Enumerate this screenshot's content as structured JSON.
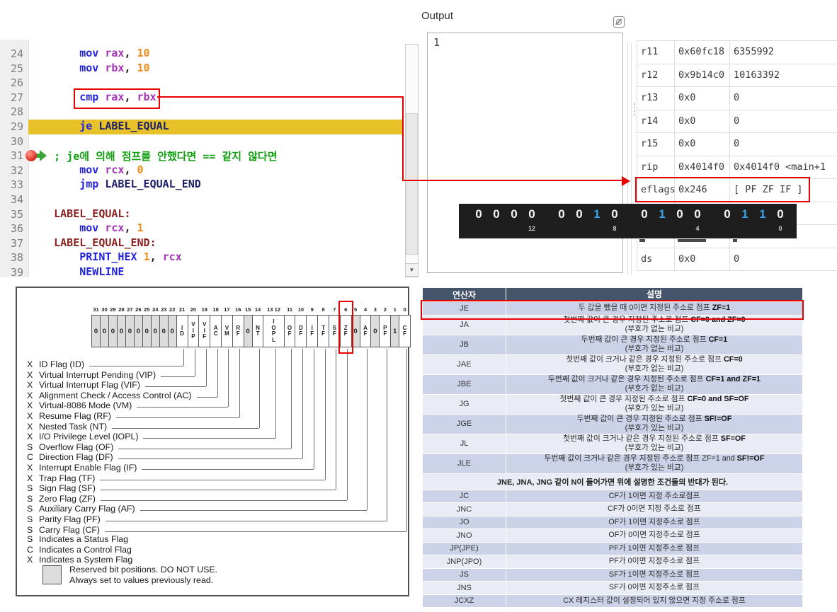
{
  "editor": {
    "lines": [
      {
        "num": "24",
        "ind": 8,
        "t": [
          [
            "kw",
            "mov"
          ],
          [
            "pl",
            " "
          ],
          [
            "reg",
            "rax"
          ],
          [
            "pl",
            ", "
          ],
          [
            "num",
            "10"
          ]
        ]
      },
      {
        "num": "25",
        "ind": 8,
        "t": [
          [
            "kw",
            "mov"
          ],
          [
            "pl",
            " "
          ],
          [
            "reg",
            "rbx"
          ],
          [
            "pl",
            ", "
          ],
          [
            "num",
            "10"
          ]
        ]
      },
      {
        "num": "26",
        "ind": 0,
        "t": []
      },
      {
        "num": "27",
        "ind": 8,
        "t": [
          [
            "kw",
            "cmp"
          ],
          [
            "pl",
            " "
          ],
          [
            "reg",
            "rax"
          ],
          [
            "pl",
            ", "
          ],
          [
            "reg",
            "rbx"
          ]
        ],
        "box": true
      },
      {
        "num": "28",
        "ind": 0,
        "t": []
      },
      {
        "num": "29",
        "ind": 8,
        "t": [
          [
            "kw",
            "je"
          ],
          [
            "pl",
            " "
          ],
          [
            "ref",
            "LABEL_EQUAL"
          ]
        ],
        "hl": true,
        "bp": true
      },
      {
        "num": "30",
        "ind": 0,
        "t": []
      },
      {
        "num": "31",
        "ind": 4,
        "t": [
          [
            "cmt",
            "; je에 의해 점프를 안했다면 == 같지 않다면"
          ]
        ]
      },
      {
        "num": "32",
        "ind": 8,
        "t": [
          [
            "kw",
            "mov"
          ],
          [
            "pl",
            " "
          ],
          [
            "reg",
            "rcx"
          ],
          [
            "pl",
            ", "
          ],
          [
            "num",
            "0"
          ]
        ]
      },
      {
        "num": "33",
        "ind": 8,
        "t": [
          [
            "kw",
            "jmp"
          ],
          [
            "pl",
            " "
          ],
          [
            "ref",
            "LABEL_EQUAL_END"
          ]
        ]
      },
      {
        "num": "34",
        "ind": 0,
        "t": []
      },
      {
        "num": "35",
        "ind": 4,
        "t": [
          [
            "lbl",
            "LABEL_EQUAL:"
          ]
        ]
      },
      {
        "num": "36",
        "ind": 8,
        "t": [
          [
            "kw",
            "mov"
          ],
          [
            "pl",
            " "
          ],
          [
            "reg",
            "rcx"
          ],
          [
            "pl",
            ", "
          ],
          [
            "num",
            "1"
          ]
        ]
      },
      {
        "num": "37",
        "ind": 4,
        "t": [
          [
            "lbl",
            "LABEL_EQUAL_END:"
          ]
        ]
      },
      {
        "num": "38",
        "ind": 8,
        "t": [
          [
            "kw",
            "PRINT_HEX"
          ],
          [
            "pl",
            " "
          ],
          [
            "num",
            "1"
          ],
          [
            "pl",
            ", "
          ],
          [
            "reg",
            "rcx"
          ]
        ]
      },
      {
        "num": "39",
        "ind": 8,
        "t": [
          [
            "kw",
            "NEWLINE"
          ]
        ]
      }
    ],
    "colors": {
      "keyword": "#2424dd",
      "register": "#a335b5",
      "number": "#ef8b17",
      "label": "#8b2323",
      "comment": "#12a012",
      "highlight_line": "#e6c228"
    }
  },
  "output_panel": {
    "title": "Output",
    "content": "1",
    "icon": "float-window-icon"
  },
  "registers": {
    "rows": [
      {
        "name": "r11",
        "hex": "0x60fc18",
        "dec": "6355992"
      },
      {
        "name": "r12",
        "hex": "0x9b14c0",
        "dec": "10163392"
      },
      {
        "name": "r13",
        "hex": "0x0",
        "dec": "0"
      },
      {
        "name": "r14",
        "hex": "0x0",
        "dec": "0"
      },
      {
        "name": "r15",
        "hex": "0x0",
        "dec": "0"
      },
      {
        "name": "rip",
        "hex": "0x4014f0",
        "dec": "0x4014f0 <main+1"
      },
      {
        "name": "eflags",
        "hex": "0x246",
        "dec": "[ PF ZF IF ]",
        "boxed": true
      },
      {
        "hidden": true
      },
      {
        "hidden": true
      },
      {
        "name": "ds",
        "hex": "0x0",
        "dec": "0"
      }
    ]
  },
  "flag_bits_bar": {
    "value_hex": "0x246",
    "groups": [
      {
        "digits": [
          "0",
          "0",
          "0",
          "0"
        ],
        "label": "12"
      },
      {
        "digits": [
          "0",
          "0",
          "1",
          "0"
        ],
        "label": "8"
      },
      {
        "digits": [
          "0",
          "1",
          "0",
          "0"
        ],
        "label": "4"
      },
      {
        "digits": [
          "0",
          "1",
          "1",
          "0"
        ],
        "label": "0"
      }
    ],
    "one_color": "#38a5ea",
    "zero_color": "#f5f5f5",
    "background": "#1e1e1e"
  },
  "eflags_diagram": {
    "cells": [
      {
        "bit": "31",
        "v": "0",
        "r": 1
      },
      {
        "bit": "30",
        "v": "0",
        "r": 1
      },
      {
        "bit": "29",
        "v": "0",
        "r": 1
      },
      {
        "bit": "28",
        "v": "0",
        "r": 1
      },
      {
        "bit": "27",
        "v": "0",
        "r": 1
      },
      {
        "bit": "26",
        "v": "0",
        "r": 1
      },
      {
        "bit": "25",
        "v": "0",
        "r": 1
      },
      {
        "bit": "24",
        "v": "0",
        "r": 1
      },
      {
        "bit": "23",
        "v": "0",
        "r": 1
      },
      {
        "bit": "22",
        "v": "0",
        "r": 1
      },
      {
        "bit": "21",
        "key": "ID",
        "txt": "ID"
      },
      {
        "bit": "20",
        "key": "VIP",
        "txt": "VIP"
      },
      {
        "bit": "19",
        "key": "VIF",
        "txt": "VIF"
      },
      {
        "bit": "18",
        "key": "AC",
        "txt": "AC"
      },
      {
        "bit": "17",
        "key": "VM",
        "txt": "VM"
      },
      {
        "bit": "16",
        "key": "RF",
        "txt": "RF"
      },
      {
        "bit": "15",
        "v": "0",
        "r": 1
      },
      {
        "bit": "14",
        "key": "NT",
        "txt": "NT"
      },
      {
        "bit": "13 12",
        "key": "IOPL",
        "txt": "IOPL",
        "wide": 1
      },
      {
        "bit": "11",
        "key": "OF",
        "txt": "OF"
      },
      {
        "bit": "10",
        "key": "DF",
        "txt": "DF"
      },
      {
        "bit": "9",
        "key": "IF",
        "txt": "IF"
      },
      {
        "bit": "8",
        "key": "TF",
        "txt": "TF"
      },
      {
        "bit": "7",
        "key": "SF",
        "txt": "SF"
      },
      {
        "bit": "6",
        "key": "ZF",
        "txt": "ZF",
        "boxed": 1
      },
      {
        "bit": "5",
        "v": "0",
        "r": 1
      },
      {
        "bit": "4",
        "key": "AF",
        "txt": "AF"
      },
      {
        "bit": "3",
        "v": "0",
        "r": 1
      },
      {
        "bit": "2",
        "key": "PF",
        "txt": "PF"
      },
      {
        "bit": "1",
        "v": "1",
        "r": 1
      },
      {
        "bit": "0",
        "key": "CF",
        "txt": "CF"
      }
    ],
    "labels": [
      {
        "letter": "X",
        "text": "ID Flag (ID)",
        "key": "ID"
      },
      {
        "letter": "X",
        "text": "Virtual Interrupt Pending (VIP)",
        "key": "VIP"
      },
      {
        "letter": "X",
        "text": "Virtual Interrupt Flag (VIF)",
        "key": "VIF"
      },
      {
        "letter": "X",
        "text": "Alignment Check / Access Control (AC)",
        "key": "AC"
      },
      {
        "letter": "X",
        "text": "Virtual-8086 Mode (VM)",
        "key": "VM"
      },
      {
        "letter": "X",
        "text": "Resume Flag (RF)",
        "key": "RF"
      },
      {
        "letter": "X",
        "text": "Nested Task (NT)",
        "key": "NT"
      },
      {
        "letter": "X",
        "text": "I/O Privilege Level (IOPL)",
        "key": "IOPL"
      },
      {
        "letter": "S",
        "text": "Overflow Flag (OF)",
        "key": "OF"
      },
      {
        "letter": "C",
        "text": "Direction Flag (DF)",
        "key": "DF"
      },
      {
        "letter": "X",
        "text": "Interrupt Enable Flag (IF)",
        "key": "IF"
      },
      {
        "letter": "X",
        "text": "Trap Flag (TF)",
        "key": "TF"
      },
      {
        "letter": "S",
        "text": "Sign Flag (SF)",
        "key": "SF"
      },
      {
        "letter": "S",
        "text": "Zero Flag (ZF)",
        "key": "ZF"
      },
      {
        "letter": "S",
        "text": "Auxiliary Carry Flag (AF)",
        "key": "AF"
      },
      {
        "letter": "S",
        "text": "Parity Flag (PF)",
        "key": "PF"
      },
      {
        "letter": "S",
        "text": "Carry Flag (CF)",
        "key": "CF"
      }
    ],
    "legend": [
      {
        "letter": "S",
        "text": "Indicates a Status Flag"
      },
      {
        "letter": "C",
        "text": "Indicates a Control Flag"
      },
      {
        "letter": "X",
        "text": "Indicates a System Flag"
      }
    ],
    "reserved_note": [
      "Reserved bit positions. DO NOT USE.",
      "Always set to values previously read."
    ]
  },
  "jump_table": {
    "headers": [
      "연산자",
      "설명"
    ],
    "header_bg": "#44546A",
    "rows": [
      {
        "op": "JE",
        "desc": "두 값을 뺐을 때 0이면 지정된 주소로 점프",
        "cond": "ZF=1",
        "shade": true,
        "boxed": true
      },
      {
        "op": "JA",
        "desc": "첫번째 값이 큰 경우 지정된 주소로 점프",
        "cond": "CF=0 and ZF=0",
        "sub": "(부호가 없는 비교)"
      },
      {
        "op": "JB",
        "desc": "두번째 값이 큰 경우 지정된 주소로 점프",
        "cond": "CF=1",
        "sub": "(부호가 없는 비교)",
        "shade": true
      },
      {
        "op": "JAE",
        "desc": "첫번째 값이 크거나 같은 경우 지정된 주소로 점프",
        "cond": "CF=0",
        "sub": "(부호가 없는 비교)"
      },
      {
        "op": "JBE",
        "desc": "두번째 값이 크거나 같은 경우 지정된 주소로 점프",
        "cond": "CF=1 and ZF=1",
        "sub": "(부호가 없는 비교)",
        "shade": true
      },
      {
        "op": "JG",
        "desc": "첫번째 값이 큰 경우 지정된 주소로 점프",
        "cond": "CF=0 and SF=OF",
        "sub": "(부호가 있는 비교)"
      },
      {
        "op": "JGE",
        "desc": "두번째 값이 큰 경우 지정된 주소로 점프",
        "cond": "SF!=OF",
        "sub": "(부호가 있는 비교)",
        "shade": true
      },
      {
        "op": "JL",
        "desc": "첫번째 값이 크거나 같은 경우 지정된 주소로 점프",
        "cond": "SF=OF",
        "sub": "(부호가 있는 비교)"
      },
      {
        "op": "JLE",
        "desc": "두번째 값이 크거나 같은 경우 지정된 주소로 점프 ZF=1 and",
        "cond": "SF!=OF",
        "sub": "(부호가 있는 비교)",
        "shade": true
      },
      {
        "span": "JNE, JNA, JNG 같이 N이 들어가면 위에 설명한 조건들의 반대가 된다."
      },
      {
        "op": "JC",
        "desc": "CF가 1이면 지정 주소로점프",
        "shade": true
      },
      {
        "op": "JNC",
        "desc": "CF가 0이면 지정 주소로 점프"
      },
      {
        "op": "JO",
        "desc": "OF가 1이면 지정주소로 점프",
        "shade": true
      },
      {
        "op": "JNO",
        "desc": "OF가 0이면 지정주소로 점프"
      },
      {
        "op": "JP(JPE)",
        "desc": "PF가 1이면 지정주소로 점프",
        "shade": true
      },
      {
        "op": "JNP(JPO)",
        "desc": "PF가 0이면 지정주소로 점프"
      },
      {
        "op": "JS",
        "desc": "SF가 1이면 지정주소로 점프",
        "shade": true
      },
      {
        "op": "JNS",
        "desc": "SF가 0이면 지정주소로 점프"
      },
      {
        "op": "JCXZ",
        "desc": "CX 레지스터 값이 설정되어 있지 않으면 지정 주소로 점프",
        "shade": true
      }
    ]
  }
}
